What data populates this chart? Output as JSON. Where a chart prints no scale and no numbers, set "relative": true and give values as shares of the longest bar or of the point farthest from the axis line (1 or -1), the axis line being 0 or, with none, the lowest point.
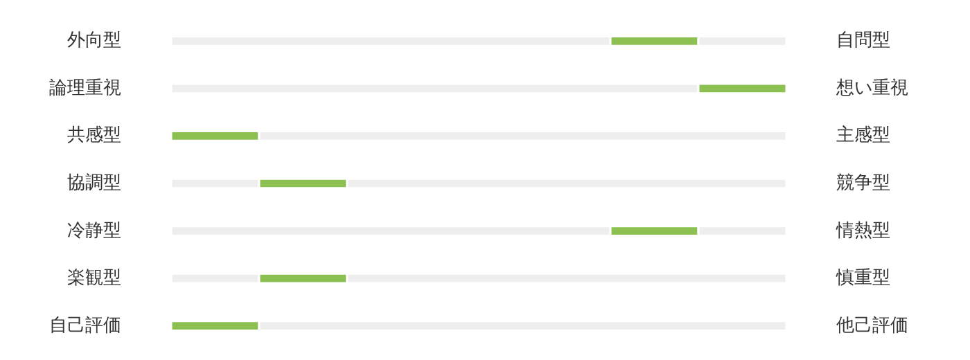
{
  "chart_data": {
    "type": "bar",
    "orientation": "horizontal",
    "stacked": true,
    "relative": true,
    "categories": [
      "外向型",
      "論理重視",
      "共感型",
      "協調型",
      "冷静型",
      "楽観型",
      "自己評価"
    ],
    "series": [
      {
        "color": "#eeeeee",
        "values": [
          0.714,
          0.857,
          0,
          0.143,
          0.714,
          0.143,
          0
        ]
      },
      {
        "color": "#8cc152",
        "values": [
          0.143,
          0.143,
          0.143,
          0.143,
          0.143,
          0.143,
          0.143
        ]
      },
      {
        "color": "#eeeeee",
        "values": [
          0.143,
          0,
          0.857,
          0.714,
          0.143,
          0.714,
          0.857
        ]
      }
    ],
    "tick_labels": "y",
    "annotations": [
      "自問型",
      "想い重視",
      "主感型",
      "競争型",
      "情熱型",
      "慎重型",
      "他己評価"
    ]
  }
}
